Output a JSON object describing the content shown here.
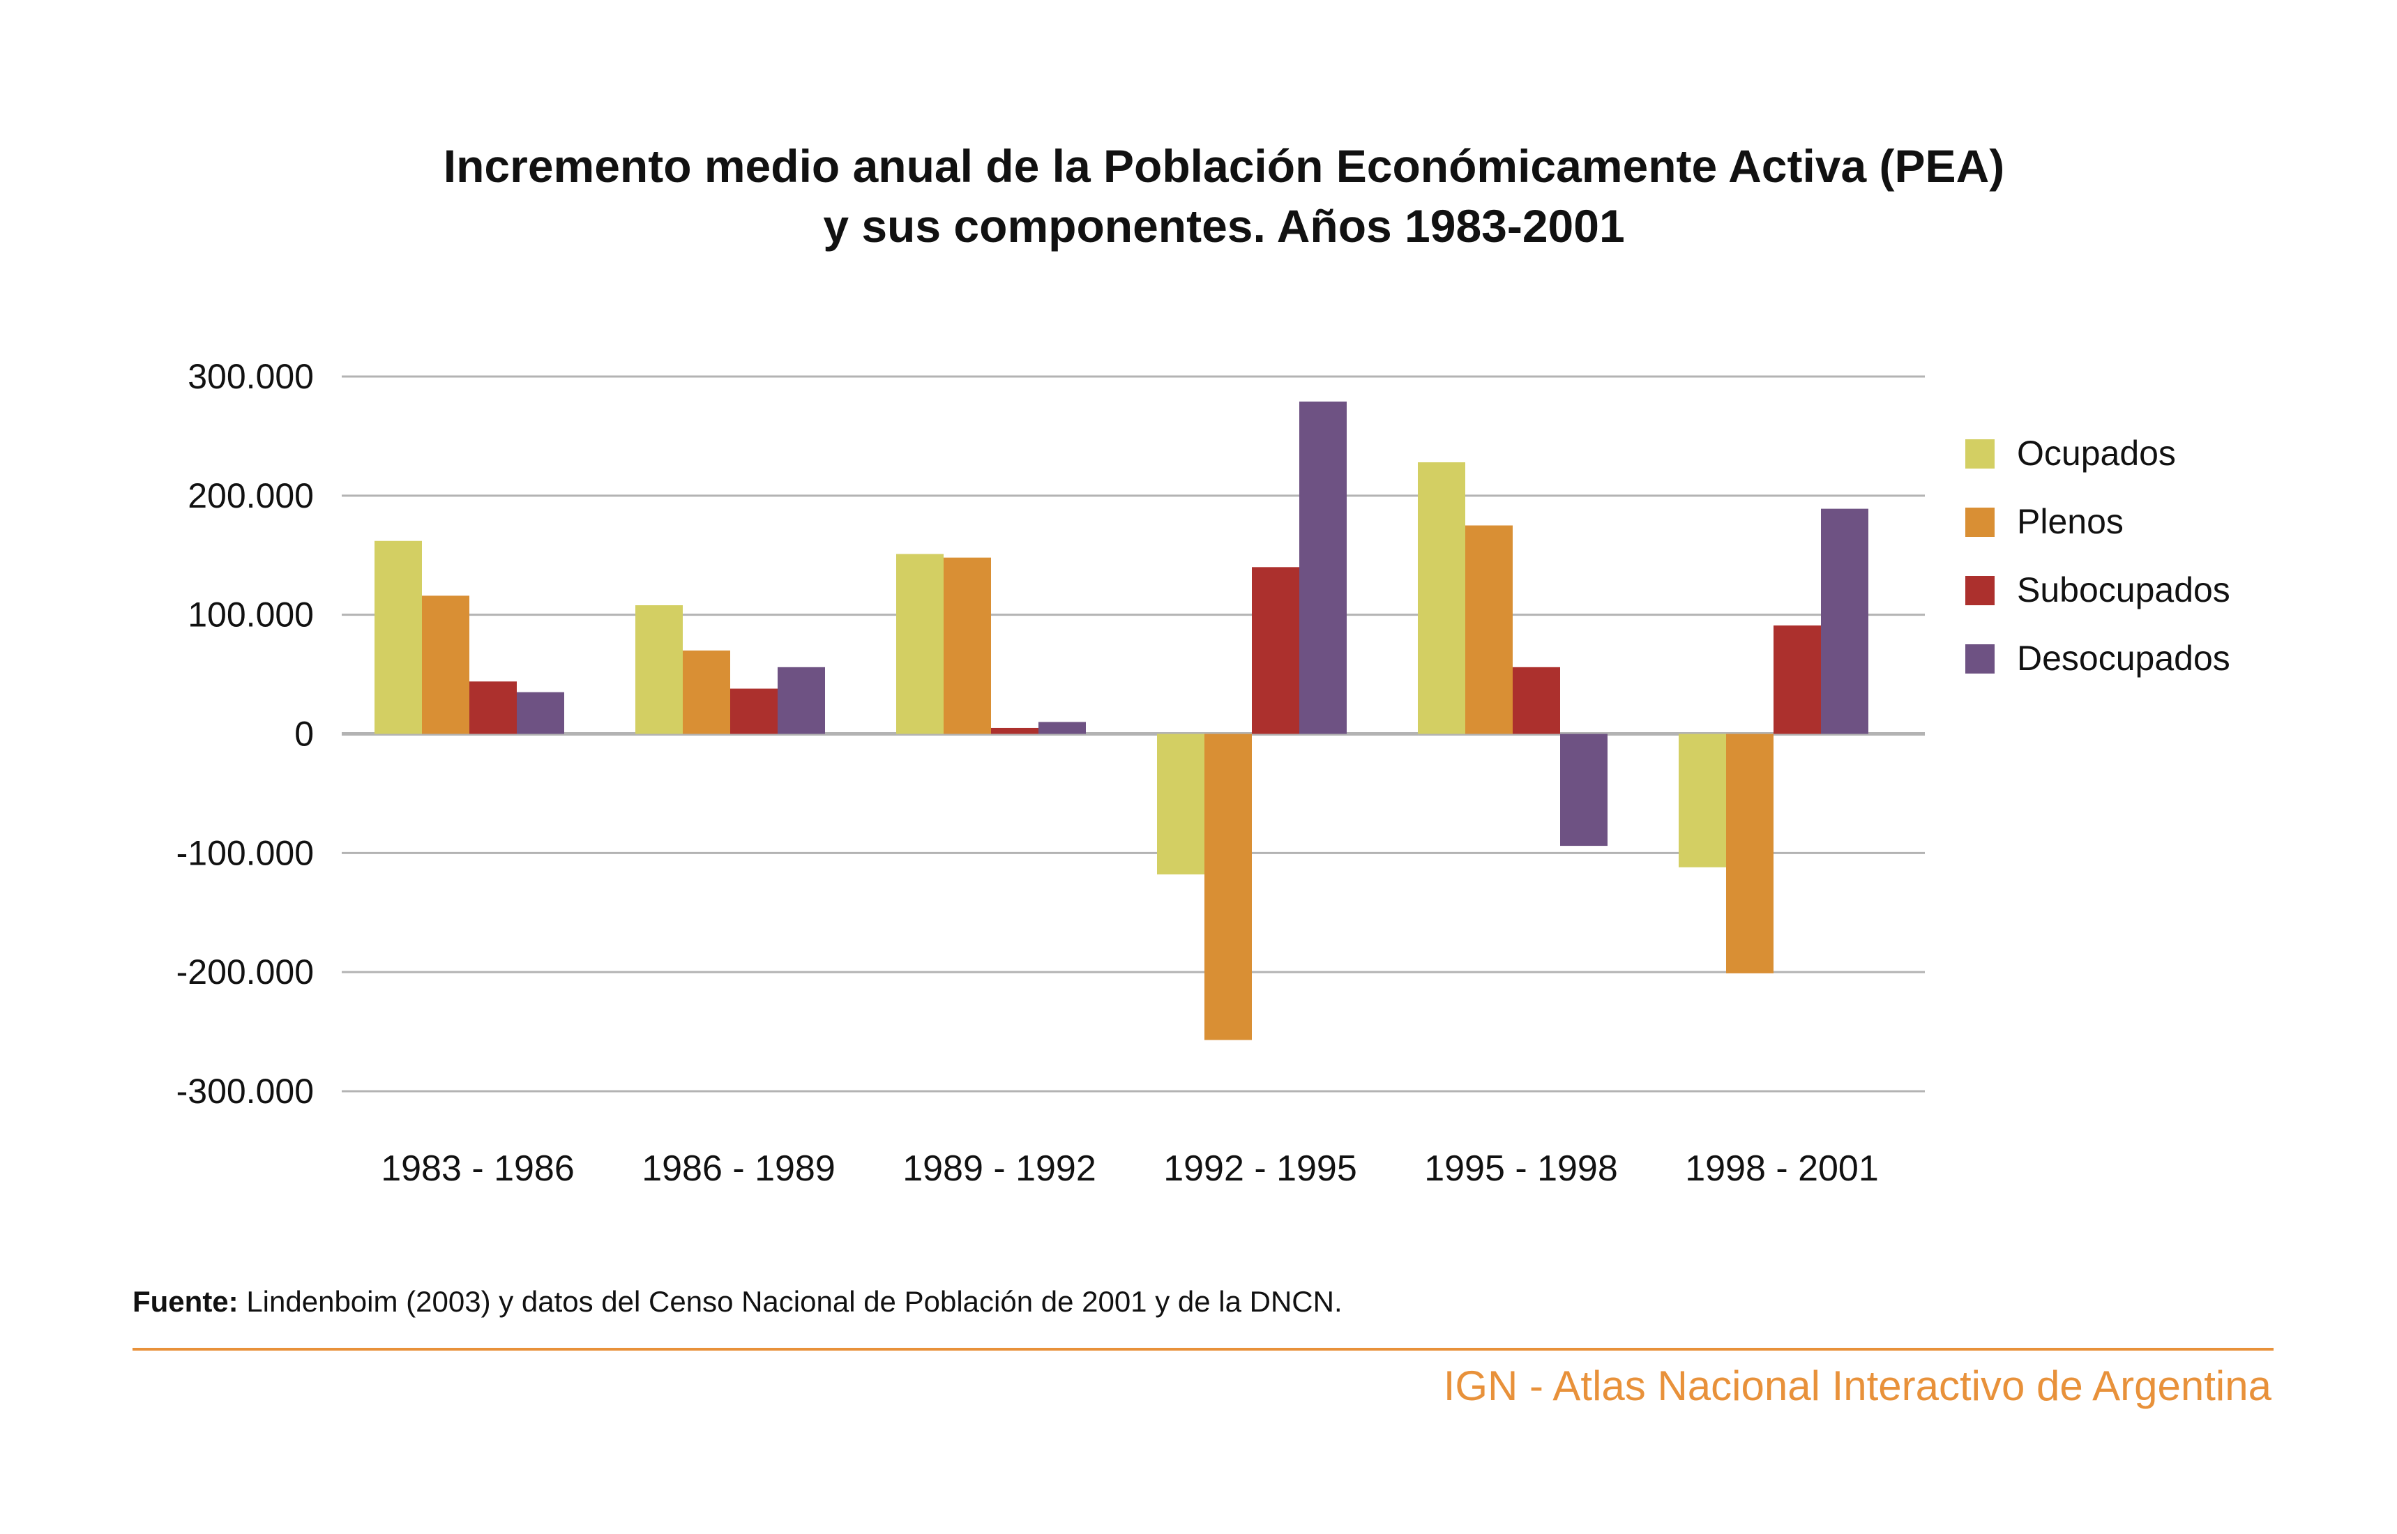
{
  "title": {
    "line1": "Incremento medio anual de la Población Económicamente Activa (PEA)",
    "line2": "y sus componentes. Años 1983-2001"
  },
  "chart_data": {
    "type": "bar",
    "categories": [
      "1983 - 1986",
      "1986 - 1989",
      "1989 - 1992",
      "1992 - 1995",
      "1995 - 1998",
      "1998 - 2001"
    ],
    "series": [
      {
        "name": "Ocupados",
        "color": "#d3cf63",
        "values": [
          162000,
          108000,
          151000,
          -118000,
          228000,
          -112000
        ]
      },
      {
        "name": "Plenos",
        "color": "#d98f34",
        "values": [
          116000,
          70000,
          148000,
          -257000,
          175000,
          -201000
        ]
      },
      {
        "name": "Subocupados",
        "color": "#ac302d",
        "values": [
          44000,
          38000,
          5000,
          140000,
          56000,
          91000
        ]
      },
      {
        "name": "Desocupados",
        "color": "#6e5283",
        "values": [
          35000,
          56000,
          10000,
          279000,
          -94000,
          189000
        ]
      }
    ],
    "yticks": [
      "300.000",
      "200.000",
      "100.000",
      "0",
      "-100.000",
      "-200.000",
      "-300.000"
    ],
    "ylim": [
      -300000,
      300000
    ],
    "grid": true,
    "legend_position": "right"
  },
  "source": {
    "label": "Fuente:",
    "text": " Lindenboim (2003) y datos del Censo Nacional de Población de 2001 y de la DNCN."
  },
  "brand": "IGN - Atlas Nacional Interactivo de Argentina"
}
